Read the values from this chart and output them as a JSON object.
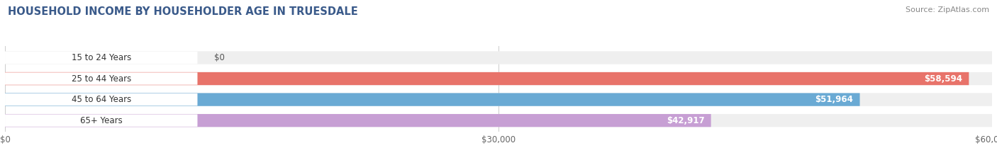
{
  "title": "HOUSEHOLD INCOME BY HOUSEHOLDER AGE IN TRUESDALE",
  "source": "Source: ZipAtlas.com",
  "categories": [
    "15 to 24 Years",
    "25 to 44 Years",
    "45 to 64 Years",
    "65+ Years"
  ],
  "values": [
    0,
    58594,
    51964,
    42917
  ],
  "value_labels": [
    "$0",
    "$58,594",
    "$51,964",
    "$42,917"
  ],
  "bar_colors": [
    "#f0c898",
    "#e8736a",
    "#6aaad4",
    "#c79fd4"
  ],
  "bar_bg_color": "#efefef",
  "label_bg_color": "#ffffff",
  "xlim": [
    0,
    60000
  ],
  "xticks": [
    0,
    30000,
    60000
  ],
  "xtick_labels": [
    "$0",
    "$30,000",
    "$60,000"
  ],
  "title_color": "#3a5a8a",
  "title_fontsize": 10.5,
  "source_fontsize": 8,
  "bar_height": 0.62,
  "label_fontsize": 8.5,
  "category_fontsize": 8.5,
  "figsize": [
    14.06,
    2.33
  ],
  "dpi": 100,
  "background_color": "#ffffff"
}
